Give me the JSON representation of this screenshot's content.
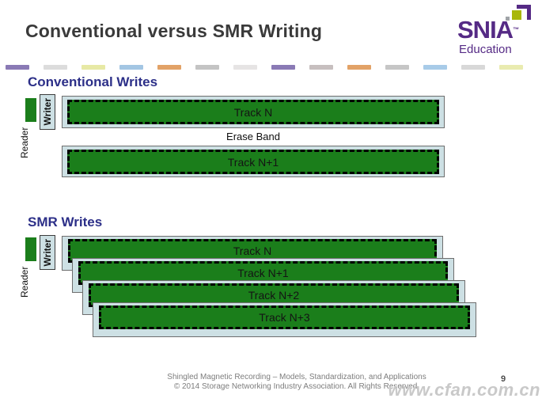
{
  "title": {
    "text": "Conventional versus SMR Writing"
  },
  "logo": {
    "name": "SNIA",
    "trademark": "™",
    "subtitle": "Education",
    "brand_color": "#552a85",
    "accent_green": "#a9b70a"
  },
  "decor_strip": {
    "colors": [
      "#8a7ab5",
      "#dcdcdc",
      "#e7e9a5",
      "#a3c6e3",
      "#e2a267",
      "#c4c4c4",
      "#e6e4e4",
      "#8a7ab5",
      "#c7bfbf",
      "#e2a267",
      "#c6c6c6",
      "#a8cbe8",
      "#d8d8d8",
      "#e9ebb0"
    ]
  },
  "diagram_colors": {
    "track_fill": "#1b7e1b",
    "band_fill": "#cde0e4",
    "heading_color": "#2c2f88"
  },
  "conventional": {
    "heading": "Conventional Writes",
    "reader_label": "Reader",
    "writer_label": "Writer",
    "erase_band_label": "Erase Band",
    "tracks": [
      {
        "label": "Track N"
      },
      {
        "label": "Track N+1"
      }
    ]
  },
  "smr": {
    "heading": "SMR Writes",
    "reader_label": "Reader",
    "writer_label": "Writer",
    "tracks": [
      {
        "label": "Track N"
      },
      {
        "label": "Track N+1"
      },
      {
        "label": "Track N+2"
      },
      {
        "label": "Track N+3"
      }
    ]
  },
  "footer": {
    "line1": "Shingled Magnetic Recording – Models, Standardization, and Applications",
    "line2": "© 2014 Storage Networking Industry Association. All Rights Reserved.",
    "page_number": "9",
    "watermark": "www.cfan.com.cn"
  }
}
